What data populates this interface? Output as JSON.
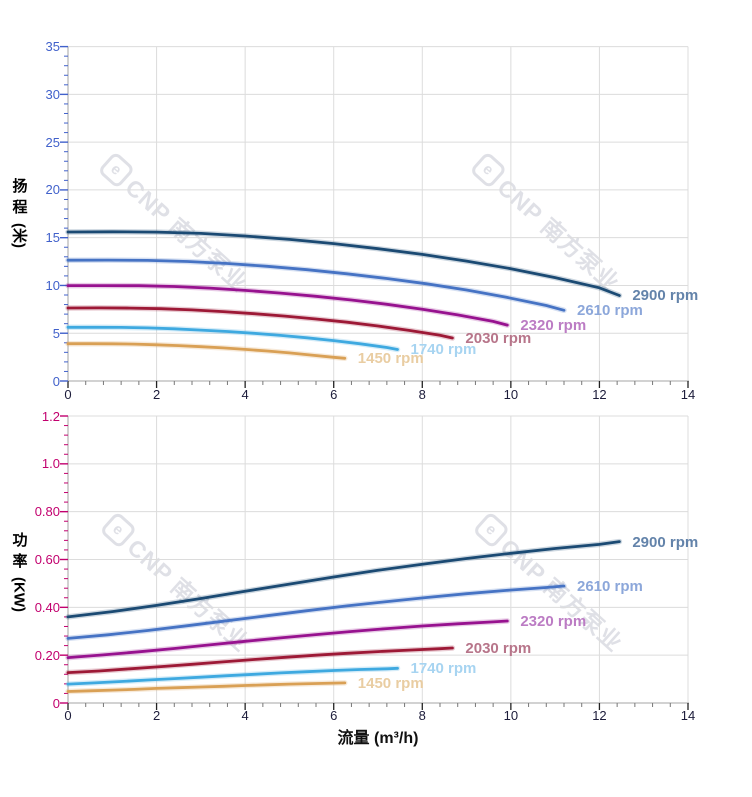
{
  "page": {
    "background": "#ffffff"
  },
  "watermark": {
    "logo_letter": "e",
    "text": "CNP 南方泵业",
    "color": "#dfe0e6"
  },
  "x_axis_title": "流量 (m³/h)",
  "chart_data": [
    {
      "type": "line",
      "name": "head-curve-chart",
      "y_axis_title": "扬程",
      "y_axis_unit": "(米)",
      "axis_color": "#4161cb",
      "title_color": "#3a4ec4",
      "x_tick_color": "#1c1c3a",
      "x_range": [
        0,
        14
      ],
      "y_range": [
        0,
        35
      ],
      "x_major_step": 2,
      "x_minor_step": 0.4,
      "y_major_step": 5,
      "y_minor_step": 1,
      "grid": true,
      "legend_position": "end-of-curve",
      "x_ticks": [
        "0",
        "2",
        "4",
        "6",
        "8",
        "10",
        "12",
        "14"
      ],
      "y_ticks": [
        "0",
        "5",
        "10",
        "15",
        "20",
        "25",
        "30",
        "35"
      ],
      "series": [
        {
          "name": "2900 rpm",
          "label": "2900 rpm",
          "color": "#1b4a73",
          "label_color": "#6383aa",
          "points": [
            [
              0,
              15.6
            ],
            [
              1,
              15.62
            ],
            [
              2,
              15.58
            ],
            [
              3,
              15.45
            ],
            [
              4,
              15.18
            ],
            [
              5,
              14.82
            ],
            [
              6,
              14.38
            ],
            [
              7,
              13.85
            ],
            [
              8,
              13.25
            ],
            [
              9,
              12.55
            ],
            [
              10,
              11.75
            ],
            [
              11,
              10.82
            ],
            [
              12,
              9.75
            ],
            [
              12.45,
              8.95
            ]
          ]
        },
        {
          "name": "2610 rpm",
          "label": "2610 rpm",
          "color": "#4673c4",
          "label_color": "#8ca7da",
          "points": [
            [
              0,
              12.64
            ],
            [
              0.9,
              12.65
            ],
            [
              1.8,
              12.62
            ],
            [
              2.7,
              12.51
            ],
            [
              3.6,
              12.3
            ],
            [
              4.5,
              12.0
            ],
            [
              5.4,
              11.65
            ],
            [
              6.3,
              11.22
            ],
            [
              7.2,
              10.73
            ],
            [
              8.1,
              10.17
            ],
            [
              9,
              9.52
            ],
            [
              9.9,
              8.76
            ],
            [
              10.8,
              7.9
            ],
            [
              11.2,
              7.4
            ]
          ]
        },
        {
          "name": "2320 rpm",
          "label": "2320 rpm",
          "color": "#97128f",
          "label_color": "#bc7cc4",
          "points": [
            [
              0,
              9.98
            ],
            [
              0.8,
              9.99
            ],
            [
              1.6,
              9.97
            ],
            [
              2.4,
              9.89
            ],
            [
              3.2,
              9.72
            ],
            [
              4,
              9.48
            ],
            [
              4.8,
              9.2
            ],
            [
              5.6,
              8.86
            ],
            [
              6.4,
              8.48
            ],
            [
              7.2,
              8.03
            ],
            [
              8,
              7.52
            ],
            [
              8.8,
              6.92
            ],
            [
              9.6,
              6.24
            ],
            [
              9.92,
              5.85
            ]
          ]
        },
        {
          "name": "2030 rpm",
          "label": "2030 rpm",
          "color": "#9d1936",
          "label_color": "#b7758a",
          "points": [
            [
              0,
              7.64
            ],
            [
              0.7,
              7.65
            ],
            [
              1.4,
              7.63
            ],
            [
              2.1,
              7.57
            ],
            [
              2.8,
              7.44
            ],
            [
              3.5,
              7.26
            ],
            [
              4.2,
              7.04
            ],
            [
              4.9,
              6.79
            ],
            [
              5.6,
              6.49
            ],
            [
              6.3,
              6.15
            ],
            [
              7,
              5.76
            ],
            [
              7.7,
              5.3
            ],
            [
              8.4,
              4.78
            ],
            [
              8.68,
              4.5
            ]
          ]
        },
        {
          "name": "1740 rpm",
          "label": "1740 rpm",
          "color": "#3ea9e0",
          "label_color": "#a7d4f1",
          "points": [
            [
              0,
              5.62
            ],
            [
              0.6,
              5.62
            ],
            [
              1.2,
              5.61
            ],
            [
              1.8,
              5.56
            ],
            [
              2.4,
              5.46
            ],
            [
              3,
              5.33
            ],
            [
              3.6,
              5.18
            ],
            [
              4.2,
              4.99
            ],
            [
              4.8,
              4.77
            ],
            [
              5.4,
              4.52
            ],
            [
              6,
              4.23
            ],
            [
              6.6,
              3.89
            ],
            [
              7.2,
              3.51
            ],
            [
              7.44,
              3.3
            ]
          ]
        },
        {
          "name": "1450 rpm",
          "label": "1450 rpm",
          "color": "#d9a055",
          "label_color": "#e9cda2",
          "points": [
            [
              0,
              3.9
            ],
            [
              0.5,
              3.9
            ],
            [
              1,
              3.89
            ],
            [
              1.5,
              3.86
            ],
            [
              2,
              3.79
            ],
            [
              2.5,
              3.7
            ],
            [
              3,
              3.59
            ],
            [
              3.5,
              3.46
            ],
            [
              4,
              3.31
            ],
            [
              4.5,
              3.14
            ],
            [
              5,
              2.94
            ],
            [
              5.5,
              2.71
            ],
            [
              6,
              2.48
            ],
            [
              6.25,
              2.38
            ]
          ]
        }
      ]
    },
    {
      "type": "line",
      "name": "power-curve-chart",
      "y_axis_title": "功率",
      "y_axis_unit": "(KW)",
      "axis_color": "#c2006e",
      "title_color": "#c2006e",
      "x_tick_color": "#1c1c3a",
      "x_range": [
        0,
        14
      ],
      "y_range": [
        0,
        1.2
      ],
      "x_major_step": 2,
      "x_minor_step": 0.4,
      "y_major_step": 0.2,
      "y_minor_step": 0.04,
      "grid": true,
      "legend_position": "end-of-curve",
      "x_ticks": [
        "0",
        "2",
        "4",
        "6",
        "8",
        "10",
        "12",
        "14"
      ],
      "y_ticks": [
        "0",
        "0.20",
        "0.40",
        "0.60",
        "0.80",
        "1.0",
        "1.2"
      ],
      "series": [
        {
          "name": "2900 rpm",
          "label": "2900 rpm",
          "color": "#1b4a73",
          "label_color": "#6383aa",
          "points": [
            [
              0,
              0.36
            ],
            [
              1,
              0.382
            ],
            [
              2,
              0.408
            ],
            [
              3,
              0.437
            ],
            [
              4,
              0.467
            ],
            [
              5,
              0.497
            ],
            [
              6,
              0.527
            ],
            [
              7,
              0.555
            ],
            [
              8,
              0.58
            ],
            [
              9,
              0.604
            ],
            [
              10,
              0.626
            ],
            [
              11,
              0.646
            ],
            [
              12,
              0.663
            ],
            [
              12.45,
              0.675
            ]
          ]
        },
        {
          "name": "2610 rpm",
          "label": "2610 rpm",
          "color": "#4673c4",
          "label_color": "#8ca7da",
          "points": [
            [
              0,
              0.27
            ],
            [
              0.9,
              0.285
            ],
            [
              1.8,
              0.303
            ],
            [
              2.7,
              0.323
            ],
            [
              3.6,
              0.344
            ],
            [
              4.5,
              0.365
            ],
            [
              5.4,
              0.386
            ],
            [
              6.3,
              0.406
            ],
            [
              7.2,
              0.424
            ],
            [
              8.1,
              0.441
            ],
            [
              9,
              0.457
            ],
            [
              9.9,
              0.471
            ],
            [
              10.8,
              0.483
            ],
            [
              11.2,
              0.489
            ]
          ]
        },
        {
          "name": "2320 rpm",
          "label": "2320 rpm",
          "color": "#97128f",
          "label_color": "#bc7cc4",
          "points": [
            [
              0,
              0.19
            ],
            [
              0.8,
              0.201
            ],
            [
              1.6,
              0.214
            ],
            [
              2.4,
              0.228
            ],
            [
              3.2,
              0.243
            ],
            [
              4,
              0.258
            ],
            [
              4.8,
              0.272
            ],
            [
              5.6,
              0.286
            ],
            [
              6.4,
              0.299
            ],
            [
              7.2,
              0.311
            ],
            [
              8,
              0.322
            ],
            [
              8.8,
              0.331
            ],
            [
              9.6,
              0.339
            ],
            [
              9.92,
              0.343
            ]
          ]
        },
        {
          "name": "2030 rpm",
          "label": "2030 rpm",
          "color": "#9d1936",
          "label_color": "#b7758a",
          "points": [
            [
              0,
              0.127
            ],
            [
              0.7,
              0.134
            ],
            [
              1.4,
              0.143
            ],
            [
              2.1,
              0.152
            ],
            [
              2.8,
              0.162
            ],
            [
              3.5,
              0.172
            ],
            [
              4.2,
              0.182
            ],
            [
              4.9,
              0.191
            ],
            [
              5.6,
              0.2
            ],
            [
              6.3,
              0.208
            ],
            [
              7,
              0.215
            ],
            [
              7.7,
              0.221
            ],
            [
              8.4,
              0.227
            ],
            [
              8.68,
              0.23
            ]
          ]
        },
        {
          "name": "1740 rpm",
          "label": "1740 rpm",
          "color": "#3ea9e0",
          "label_color": "#a7d4f1",
          "points": [
            [
              0,
              0.079
            ],
            [
              0.6,
              0.084
            ],
            [
              1.2,
              0.09
            ],
            [
              1.8,
              0.096
            ],
            [
              2.4,
              0.102
            ],
            [
              3,
              0.108
            ],
            [
              3.6,
              0.114
            ],
            [
              4.2,
              0.12
            ],
            [
              4.8,
              0.126
            ],
            [
              5.4,
              0.131
            ],
            [
              6,
              0.136
            ],
            [
              6.6,
              0.14
            ],
            [
              7.2,
              0.143
            ],
            [
              7.44,
              0.145
            ]
          ]
        },
        {
          "name": "1450 rpm",
          "label": "1450 rpm",
          "color": "#d9a055",
          "label_color": "#e9cda2",
          "points": [
            [
              0,
              0.048
            ],
            [
              0.5,
              0.051
            ],
            [
              1,
              0.054
            ],
            [
              1.5,
              0.057
            ],
            [
              2,
              0.061
            ],
            [
              2.5,
              0.064
            ],
            [
              3,
              0.067
            ],
            [
              3.5,
              0.07
            ],
            [
              4,
              0.073
            ],
            [
              4.5,
              0.076
            ],
            [
              5,
              0.079
            ],
            [
              5.5,
              0.081
            ],
            [
              6,
              0.083
            ],
            [
              6.25,
              0.084
            ]
          ]
        }
      ]
    }
  ]
}
